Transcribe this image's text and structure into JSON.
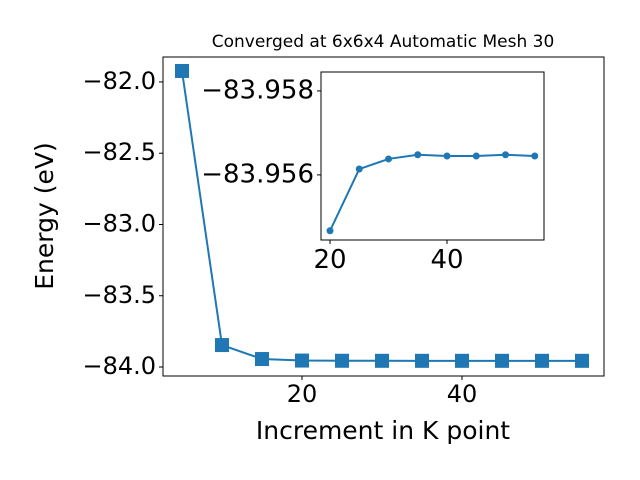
{
  "chart_data": [
    {
      "type": "line",
      "title": "Converged at 6x6x4 Automatic Mesh 30",
      "x_label": "Increment in K point",
      "y_label": "Energy (eV)",
      "x": [
        5,
        10,
        15,
        20,
        25,
        30,
        35,
        40,
        45,
        50,
        55
      ],
      "series": [
        {
          "color": "#1f77b4",
          "marker": "square",
          "values": [
            -81.923,
            -83.846,
            -83.944,
            -83.95467,
            -83.95614,
            -83.95638,
            -83.95648,
            -83.95645,
            -83.95645,
            -83.95648,
            -83.95645
          ]
        }
      ],
      "xlim": [
        2.625,
        57.75
      ],
      "xticks": [
        20,
        40
      ],
      "ylim": [
        -84.063,
        -81.825
      ],
      "yticks": [
        {
          "value": -84.0,
          "label": "−84.0"
        },
        {
          "value": -83.5,
          "label": "−83.5"
        },
        {
          "value": -83.0,
          "label": "−83.0"
        },
        {
          "value": -82.5,
          "label": "−82.5"
        },
        {
          "value": -82.0,
          "label": "−82.0"
        }
      ]
    },
    {
      "type": "line",
      "x": [
        20,
        25,
        30,
        35,
        40,
        45,
        50,
        55
      ],
      "series": [
        {
          "color": "#1f77b4",
          "marker": "circle",
          "values": [
            -83.95467,
            -83.95614,
            -83.95638,
            -83.95648,
            -83.95645,
            -83.95645,
            -83.95648,
            -83.95645
          ]
        }
      ],
      "xlim": [
        18.46,
        56.58
      ],
      "xticks": [
        20,
        40
      ],
      "ylim": [
        -83.95445,
        -83.95845
      ],
      "yticks": [
        {
          "value": -83.956,
          "label": "−83.956"
        },
        {
          "value": -83.958,
          "label": "−83.958"
        }
      ]
    }
  ]
}
